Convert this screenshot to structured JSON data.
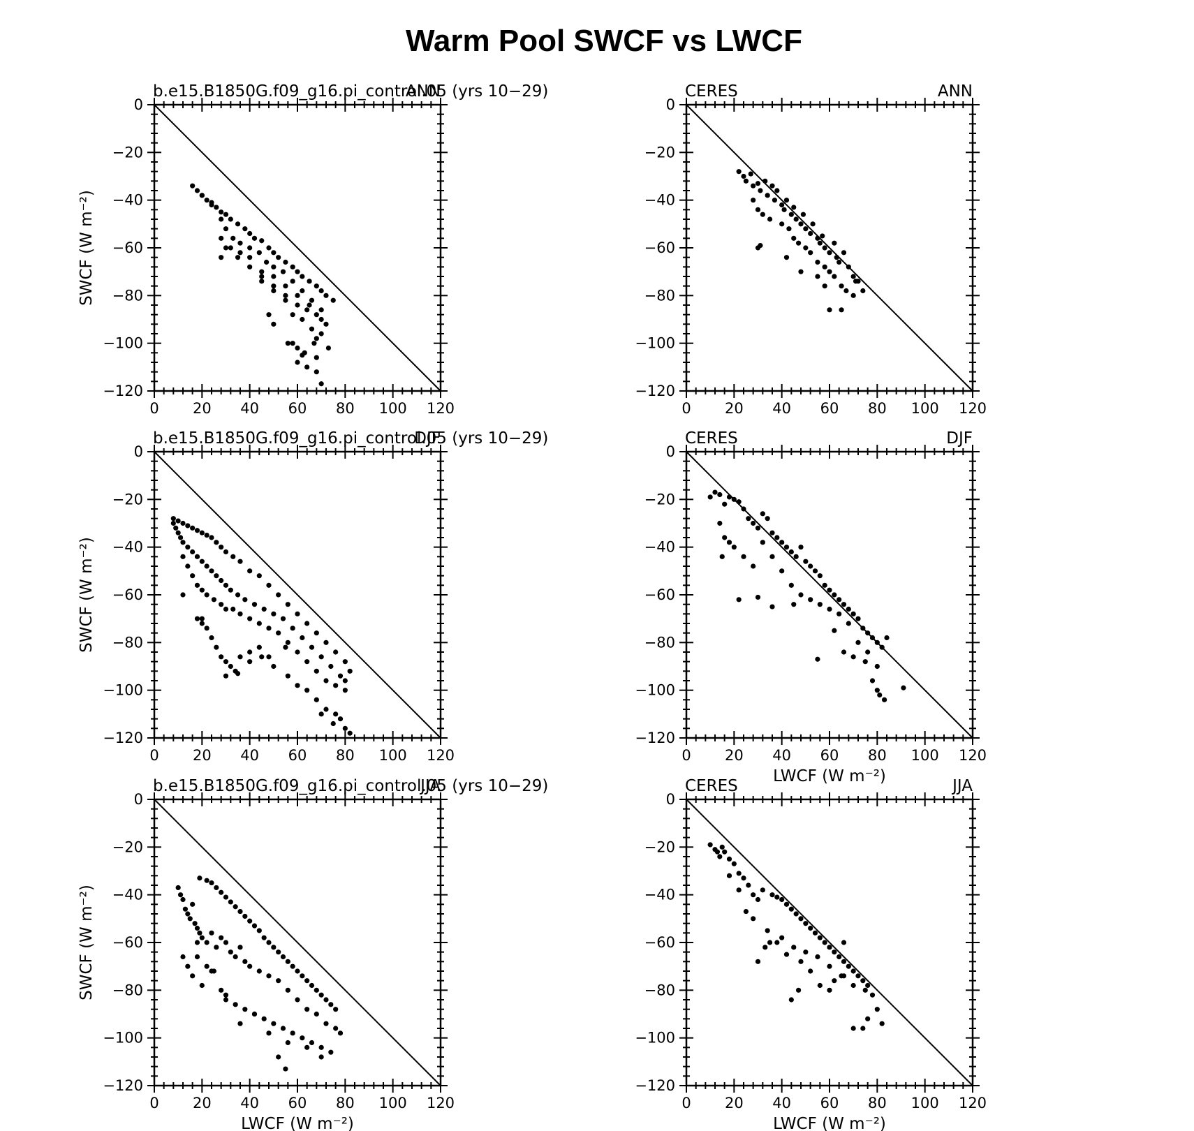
{
  "figure": {
    "title": "Warm Pool SWCF vs LWCF"
  },
  "chart_data": [
    {
      "type": "scatter",
      "left_label": "b.e15.B1850G.f09_g16.pi_control.05 (yrs 10−29)",
      "right_label": "ANN",
      "xlabel": "",
      "ylabel": "SWCF (W m⁻²)",
      "xlim": [
        0,
        120
      ],
      "ylim": [
        -120,
        0
      ],
      "xticks": [
        "0",
        "20",
        "40",
        "60",
        "80",
        "100",
        "120"
      ],
      "yticks": [
        "0",
        "−20",
        "−40",
        "−60",
        "−80",
        "−100",
        "−120"
      ],
      "reference_line": "1:1 diagonal",
      "x": [
        16,
        18,
        20,
        22,
        24,
        26,
        28,
        30,
        32,
        35,
        38,
        40,
        42,
        45,
        48,
        50,
        52,
        55,
        58,
        60,
        62,
        65,
        68,
        70,
        72,
        75,
        20,
        24,
        28,
        30,
        33,
        36,
        40,
        44,
        47,
        50,
        54,
        58,
        62,
        66,
        70,
        28,
        32,
        36,
        40,
        45,
        50,
        55,
        60,
        65,
        70,
        35,
        40,
        45,
        50,
        55,
        60,
        64,
        68,
        72,
        45,
        50,
        55,
        58,
        62,
        66,
        68,
        56,
        60,
        63,
        67,
        70,
        73,
        60,
        64,
        68,
        28,
        30,
        48,
        50,
        58,
        62,
        68,
        70
      ],
      "y": [
        -34,
        -36,
        -38,
        -40,
        -41,
        -43,
        -45,
        -46,
        -48,
        -50,
        -52,
        -54,
        -56,
        -57,
        -60,
        -62,
        -64,
        -66,
        -68,
        -70,
        -72,
        -74,
        -76,
        -78,
        -80,
        -82,
        -38,
        -42,
        -48,
        -52,
        -56,
        -58,
        -60,
        -62,
        -66,
        -68,
        -70,
        -74,
        -78,
        -82,
        -86,
        -56,
        -60,
        -62,
        -64,
        -70,
        -72,
        -76,
        -80,
        -84,
        -90,
        -64,
        -68,
        -72,
        -76,
        -80,
        -84,
        -86,
        -88,
        -92,
        -74,
        -78,
        -82,
        -88,
        -90,
        -94,
        -98,
        -100,
        -102,
        -104,
        -100,
        -96,
        -102,
        -108,
        -110,
        -106,
        -64,
        -60,
        -88,
        -92,
        -100,
        -105,
        -112,
        -117
      ]
    },
    {
      "type": "scatter",
      "left_label": "CERES",
      "right_label": "ANN",
      "xlabel": "",
      "ylabel": "",
      "xlim": [
        0,
        120
      ],
      "ylim": [
        -120,
        0
      ],
      "xticks": [
        "0",
        "20",
        "40",
        "60",
        "80",
        "100",
        "120"
      ],
      "yticks": [
        "0",
        "−20",
        "−40",
        "−60",
        "−80",
        "−100",
        "−120"
      ],
      "reference_line": "1:1 diagonal",
      "x": [
        22,
        24,
        25,
        27,
        28,
        30,
        31,
        33,
        34,
        36,
        37,
        38,
        40,
        41,
        42,
        44,
        45,
        46,
        48,
        49,
        50,
        52,
        53,
        55,
        56,
        57,
        58,
        60,
        62,
        63,
        64,
        66,
        68,
        70,
        72,
        74,
        28,
        30,
        32,
        35,
        40,
        43,
        45,
        47,
        50,
        52,
        55,
        58,
        60,
        62,
        65,
        67,
        70,
        71,
        30,
        31,
        42,
        48,
        55,
        58,
        60,
        65
      ],
      "y": [
        -28,
        -30,
        -32,
        -29,
        -34,
        -33,
        -36,
        -32,
        -38,
        -34,
        -40,
        -36,
        -42,
        -44,
        -40,
        -46,
        -43,
        -48,
        -50,
        -46,
        -52,
        -54,
        -50,
        -56,
        -58,
        -55,
        -60,
        -62,
        -58,
        -64,
        -66,
        -62,
        -68,
        -72,
        -74,
        -78,
        -40,
        -44,
        -46,
        -48,
        -50,
        -52,
        -56,
        -58,
        -60,
        -62,
        -66,
        -68,
        -70,
        -72,
        -76,
        -78,
        -80,
        -74,
        -60,
        -59,
        -64,
        -70,
        -72,
        -76,
        -86,
        -86
      ]
    },
    {
      "type": "scatter",
      "left_label": "b.e15.B1850G.f09_g16.pi_control.05 (yrs 10−29)",
      "right_label": "DJF",
      "xlabel": "",
      "ylabel": "SWCF (W m⁻²)",
      "xlim": [
        0,
        120
      ],
      "ylim": [
        -120,
        0
      ],
      "xticks": [
        "0",
        "20",
        "40",
        "60",
        "80",
        "100",
        "120"
      ],
      "yticks": [
        "0",
        "−20",
        "−40",
        "−60",
        "−80",
        "−100",
        "−120"
      ],
      "reference_line": "1:1 diagonal",
      "x": [
        8,
        10,
        12,
        14,
        16,
        18,
        20,
        22,
        24,
        26,
        28,
        30,
        33,
        36,
        40,
        44,
        48,
        52,
        56,
        60,
        64,
        68,
        72,
        76,
        80,
        82,
        8,
        9,
        10,
        11,
        12,
        14,
        16,
        18,
        20,
        22,
        24,
        26,
        28,
        30,
        32,
        35,
        38,
        42,
        46,
        50,
        54,
        58,
        62,
        66,
        70,
        74,
        78,
        80,
        12,
        14,
        16,
        18,
        20,
        22,
        25,
        28,
        30,
        33,
        36,
        40,
        44,
        48,
        52,
        56,
        60,
        64,
        68,
        72,
        76,
        80,
        18,
        20,
        22,
        24,
        26,
        28,
        30,
        32,
        34,
        36,
        40,
        44,
        48,
        50,
        56,
        60,
        64,
        68,
        72,
        76,
        78,
        80,
        82,
        12,
        20,
        30,
        35,
        40,
        45,
        55,
        70,
        75
      ],
      "y": [
        -28,
        -29,
        -30,
        -31,
        -32,
        -33,
        -34,
        -35,
        -36,
        -38,
        -40,
        -42,
        -44,
        -46,
        -50,
        -52,
        -56,
        -60,
        -64,
        -68,
        -72,
        -76,
        -80,
        -84,
        -88,
        -92,
        -30,
        -32,
        -34,
        -36,
        -38,
        -40,
        -42,
        -44,
        -46,
        -48,
        -50,
        -52,
        -54,
        -56,
        -58,
        -60,
        -62,
        -64,
        -66,
        -68,
        -70,
        -74,
        -78,
        -82,
        -86,
        -90,
        -94,
        -96,
        -44,
        -48,
        -52,
        -56,
        -58,
        -60,
        -62,
        -64,
        -66,
        -66,
        -68,
        -70,
        -72,
        -74,
        -76,
        -80,
        -84,
        -88,
        -92,
        -96,
        -98,
        -100,
        -70,
        -72,
        -74,
        -78,
        -82,
        -86,
        -88,
        -90,
        -92,
        -86,
        -84,
        -82,
        -86,
        -90,
        -94,
        -98,
        -100,
        -104,
        -108,
        -110,
        -112,
        -116,
        -118,
        -60,
        -70,
        -94,
        -93,
        -88,
        -86,
        -82,
        -110,
        -114
      ]
    },
    {
      "type": "scatter",
      "left_label": "CERES",
      "right_label": "DJF",
      "xlabel": "LWCF (W m⁻²)",
      "ylabel": "",
      "xlim": [
        0,
        120
      ],
      "ylim": [
        -120,
        0
      ],
      "xticks": [
        "0",
        "20",
        "40",
        "60",
        "80",
        "100",
        "120"
      ],
      "yticks": [
        "0",
        "−20",
        "−40",
        "−60",
        "−80",
        "−100",
        "−120"
      ],
      "reference_line": "1:1 diagonal",
      "x": [
        10,
        12,
        14,
        16,
        18,
        20,
        22,
        24,
        26,
        28,
        30,
        32,
        34,
        36,
        38,
        40,
        42,
        44,
        46,
        48,
        50,
        52,
        54,
        56,
        58,
        60,
        62,
        64,
        66,
        68,
        70,
        72,
        74,
        76,
        78,
        80,
        82,
        84,
        14,
        16,
        20,
        24,
        28,
        32,
        36,
        40,
        44,
        48,
        52,
        56,
        60,
        64,
        68,
        72,
        76,
        80,
        15,
        18,
        22,
        30,
        36,
        45,
        55,
        62,
        66,
        70,
        75,
        78,
        80,
        81,
        83,
        91
      ],
      "y": [
        -19,
        -17,
        -18,
        -22,
        -19,
        -20,
        -21,
        -24,
        -28,
        -30,
        -32,
        -26,
        -28,
        -34,
        -36,
        -38,
        -40,
        -42,
        -44,
        -40,
        -46,
        -48,
        -50,
        -52,
        -56,
        -58,
        -60,
        -62,
        -64,
        -66,
        -68,
        -70,
        -74,
        -76,
        -78,
        -80,
        -82,
        -78,
        -30,
        -36,
        -40,
        -44,
        -48,
        -38,
        -44,
        -50,
        -56,
        -60,
        -62,
        -64,
        -66,
        -68,
        -72,
        -80,
        -84,
        -90,
        -44,
        -38,
        -62,
        -61,
        -65,
        -64,
        -87,
        -75,
        -84,
        -86,
        -88,
        -96,
        -100,
        -102,
        -104,
        -99
      ]
    },
    {
      "type": "scatter",
      "left_label": "b.e15.B1850G.f09_g16.pi_control.05 (yrs 10−29)",
      "right_label": "JJA",
      "xlabel": "LWCF (W m⁻²)",
      "ylabel": "SWCF (W m⁻²)",
      "xlim": [
        0,
        120
      ],
      "ylim": [
        -120,
        0
      ],
      "xticks": [
        "0",
        "20",
        "40",
        "60",
        "80",
        "100",
        "120"
      ],
      "yticks": [
        "0",
        "−20",
        "−40",
        "−60",
        "−80",
        "−100",
        "−120"
      ],
      "reference_line": "1:1 diagonal",
      "x": [
        19,
        22,
        24,
        26,
        28,
        30,
        32,
        34,
        36,
        38,
        40,
        42,
        44,
        46,
        48,
        50,
        52,
        54,
        56,
        58,
        60,
        62,
        64,
        66,
        68,
        70,
        72,
        74,
        76,
        10,
        11,
        12,
        13,
        14,
        15,
        16,
        17,
        18,
        19,
        20,
        22,
        24,
        26,
        28,
        30,
        32,
        34,
        36,
        38,
        40,
        44,
        48,
        52,
        56,
        60,
        64,
        68,
        72,
        76,
        78,
        12,
        14,
        16,
        18,
        20,
        22,
        25,
        28,
        30,
        34,
        38,
        42,
        46,
        50,
        54,
        58,
        62,
        66,
        70,
        74,
        18,
        24,
        30,
        36,
        42,
        48,
        56,
        64,
        70,
        52,
        55
      ],
      "y": [
        -33,
        -34,
        -35,
        -37,
        -39,
        -41,
        -43,
        -45,
        -47,
        -49,
        -51,
        -53,
        -55,
        -58,
        -60,
        -62,
        -64,
        -66,
        -68,
        -70,
        -72,
        -74,
        -76,
        -78,
        -80,
        -82,
        -84,
        -86,
        -88,
        -37,
        -40,
        -42,
        -46,
        -48,
        -50,
        -44,
        -52,
        -54,
        -56,
        -58,
        -60,
        -56,
        -62,
        -58,
        -60,
        -64,
        -66,
        -62,
        -68,
        -70,
        -72,
        -74,
        -76,
        -80,
        -84,
        -88,
        -90,
        -94,
        -96,
        -98,
        -66,
        -70,
        -74,
        -66,
        -78,
        -70,
        -72,
        -80,
        -82,
        -86,
        -88,
        -90,
        -92,
        -94,
        -96,
        -98,
        -100,
        -102,
        -104,
        -106,
        -60,
        -72,
        -84,
        -94,
        -90,
        -98,
        -102,
        -104,
        -108,
        -108,
        -113
      ]
    },
    {
      "type": "scatter",
      "left_label": "CERES",
      "right_label": "JJA",
      "xlabel": "LWCF (W m⁻²)",
      "ylabel": "",
      "xlim": [
        0,
        120
      ],
      "ylim": [
        -120,
        0
      ],
      "xticks": [
        "0",
        "20",
        "40",
        "60",
        "80",
        "100",
        "120"
      ],
      "yticks": [
        "0",
        "−20",
        "−40",
        "−60",
        "−80",
        "−100",
        "−120"
      ],
      "reference_line": "1:1 diagonal",
      "x": [
        10,
        12,
        13,
        14,
        15,
        16,
        18,
        20,
        22,
        24,
        26,
        28,
        30,
        32,
        36,
        38,
        40,
        42,
        44,
        46,
        48,
        50,
        52,
        54,
        56,
        58,
        60,
        62,
        64,
        66,
        68,
        70,
        72,
        74,
        76,
        78,
        80,
        82,
        25,
        28,
        34,
        40,
        45,
        50,
        55,
        60,
        65,
        70,
        75,
        38,
        42,
        48,
        52,
        56,
        60,
        62,
        66,
        18,
        22,
        30,
        33,
        35,
        44,
        47,
        66,
        70,
        74,
        76
      ],
      "y": [
        -19,
        -21,
        -22,
        -24,
        -20,
        -22,
        -25,
        -27,
        -31,
        -33,
        -36,
        -40,
        -42,
        -38,
        -40,
        -41,
        -42,
        -44,
        -46,
        -48,
        -50,
        -52,
        -54,
        -56,
        -58,
        -60,
        -62,
        -64,
        -66,
        -68,
        -70,
        -72,
        -74,
        -76,
        -78,
        -82,
        -88,
        -94,
        -47,
        -50,
        -55,
        -58,
        -62,
        -64,
        -66,
        -70,
        -74,
        -78,
        -80,
        -60,
        -65,
        -68,
        -72,
        -78,
        -80,
        -76,
        -74,
        -32,
        -38,
        -68,
        -62,
        -60,
        -84,
        -80,
        -60,
        -96,
        -96,
        -92
      ]
    }
  ]
}
